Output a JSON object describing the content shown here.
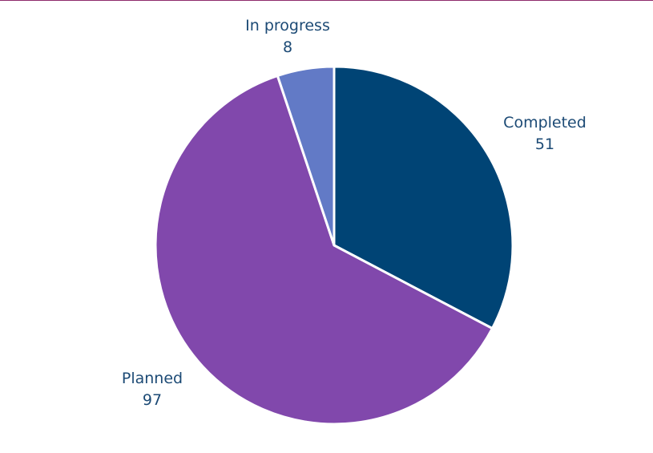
{
  "chart_data": {
    "type": "pie",
    "title": "",
    "start": "12 o'clock",
    "direction": "clockwise",
    "slices": [
      {
        "label": "Completed",
        "value": 51,
        "color": "#004475"
      },
      {
        "label": "Planned",
        "value": 97,
        "color": "#8148ac"
      },
      {
        "label": "In progress",
        "value": 8,
        "color": "#627ac6"
      }
    ],
    "legend": "none",
    "label_color": "#1c4a75"
  }
}
